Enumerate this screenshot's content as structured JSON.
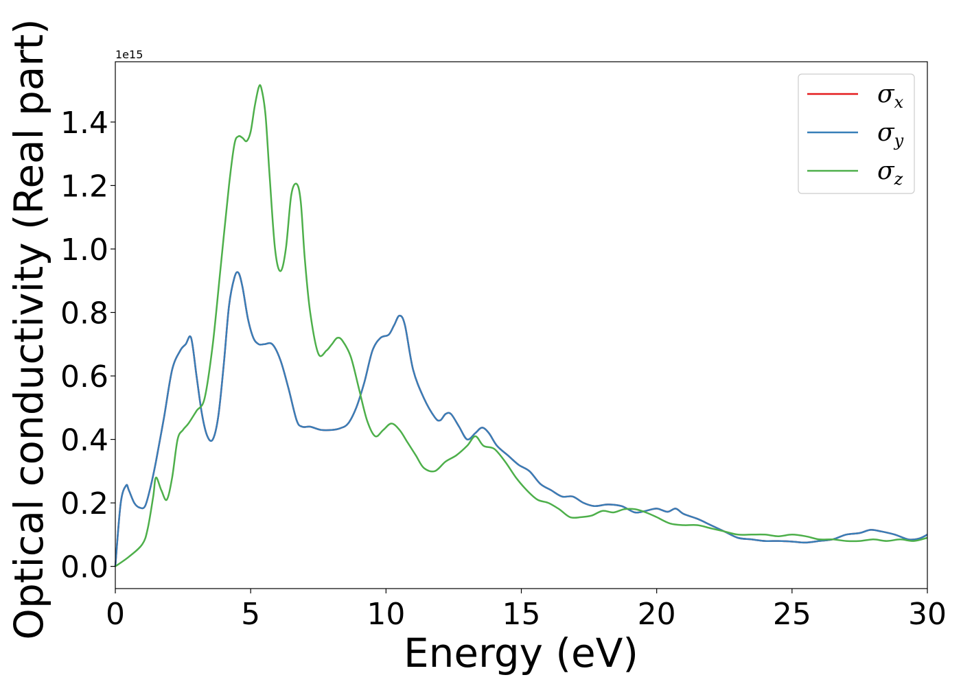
{
  "chart_data": {
    "type": "line",
    "xlabel": "Energy (eV)",
    "ylabel": "Optical conductivity (Real part)",
    "y_offset_label": "1e15",
    "xlim": [
      0,
      30
    ],
    "ylim": [
      -0.07,
      1.59
    ],
    "xticks": [
      "0",
      "5",
      "10",
      "15",
      "20",
      "25",
      "30"
    ],
    "yticks": [
      "0.0",
      "0.2",
      "0.4",
      "0.6",
      "0.8",
      "1.0",
      "1.2",
      "1.4"
    ],
    "grid": false,
    "legend_position": "top-right",
    "series": [
      {
        "name": "σx",
        "symbol": "σ",
        "sub": "x",
        "color": "#e41a1c",
        "x": [
          0,
          0.2,
          0.4,
          0.5,
          0.7,
          0.9,
          1.1,
          1.3,
          1.5,
          1.8,
          2.1,
          2.4,
          2.6,
          2.8,
          3.0,
          3.2,
          3.4,
          3.6,
          3.8,
          4.0,
          4.2,
          4.4,
          4.55,
          4.7,
          4.9,
          5.1,
          5.3,
          5.5,
          5.8,
          6.1,
          6.4,
          6.7,
          6.9,
          7.2,
          7.6,
          8.0,
          8.3,
          8.6,
          8.9,
          9.2,
          9.5,
          9.8,
          10.1,
          10.3,
          10.5,
          10.7,
          11.0,
          11.4,
          11.8,
          12.0,
          12.2,
          12.4,
          12.7,
          13.0,
          13.3,
          13.55,
          13.8,
          14.1,
          14.5,
          14.9,
          15.3,
          15.7,
          16.1,
          16.5,
          16.9,
          17.3,
          17.7,
          18.2,
          18.7,
          19.2,
          19.6,
          20.0,
          20.4,
          20.7,
          21.0,
          21.5,
          22.0,
          22.5,
          23.0,
          23.5,
          24.0,
          24.5,
          25.0,
          25.5,
          26.0,
          26.5,
          27.0,
          27.5,
          27.9,
          28.3,
          28.8,
          29.3,
          29.7,
          30.0
        ],
        "y": [
          0.0,
          0.2,
          0.255,
          0.24,
          0.2,
          0.185,
          0.19,
          0.25,
          0.33,
          0.47,
          0.62,
          0.68,
          0.7,
          0.72,
          0.6,
          0.48,
          0.41,
          0.4,
          0.47,
          0.63,
          0.82,
          0.91,
          0.925,
          0.88,
          0.78,
          0.72,
          0.7,
          0.7,
          0.7,
          0.65,
          0.56,
          0.46,
          0.44,
          0.44,
          0.43,
          0.43,
          0.435,
          0.45,
          0.5,
          0.58,
          0.68,
          0.72,
          0.73,
          0.76,
          0.79,
          0.76,
          0.62,
          0.53,
          0.47,
          0.46,
          0.48,
          0.48,
          0.44,
          0.4,
          0.42,
          0.437,
          0.42,
          0.38,
          0.35,
          0.32,
          0.3,
          0.26,
          0.24,
          0.22,
          0.22,
          0.2,
          0.19,
          0.195,
          0.19,
          0.17,
          0.175,
          0.182,
          0.172,
          0.182,
          0.165,
          0.15,
          0.13,
          0.11,
          0.09,
          0.085,
          0.08,
          0.08,
          0.078,
          0.075,
          0.08,
          0.085,
          0.1,
          0.105,
          0.115,
          0.11,
          0.1,
          0.085,
          0.088,
          0.1
        ]
      },
      {
        "name": "σy",
        "symbol": "σ",
        "sub": "y",
        "color": "#377eb8",
        "x": [
          0,
          0.2,
          0.4,
          0.5,
          0.7,
          0.9,
          1.1,
          1.3,
          1.5,
          1.8,
          2.1,
          2.4,
          2.6,
          2.8,
          3.0,
          3.2,
          3.4,
          3.6,
          3.8,
          4.0,
          4.2,
          4.4,
          4.55,
          4.7,
          4.9,
          5.1,
          5.3,
          5.5,
          5.8,
          6.1,
          6.4,
          6.7,
          6.9,
          7.2,
          7.6,
          8.0,
          8.3,
          8.6,
          8.9,
          9.2,
          9.5,
          9.8,
          10.1,
          10.3,
          10.5,
          10.7,
          11.0,
          11.4,
          11.8,
          12.0,
          12.2,
          12.4,
          12.7,
          13.0,
          13.3,
          13.55,
          13.8,
          14.1,
          14.5,
          14.9,
          15.3,
          15.7,
          16.1,
          16.5,
          16.9,
          17.3,
          17.7,
          18.2,
          18.7,
          19.2,
          19.6,
          20.0,
          20.4,
          20.7,
          21.0,
          21.5,
          22.0,
          22.5,
          23.0,
          23.5,
          24.0,
          24.5,
          25.0,
          25.5,
          26.0,
          26.5,
          27.0,
          27.5,
          27.9,
          28.3,
          28.8,
          29.3,
          29.7,
          30.0
        ],
        "y": [
          0.0,
          0.2,
          0.255,
          0.24,
          0.2,
          0.185,
          0.19,
          0.25,
          0.33,
          0.47,
          0.62,
          0.68,
          0.7,
          0.72,
          0.6,
          0.48,
          0.41,
          0.4,
          0.47,
          0.63,
          0.82,
          0.91,
          0.925,
          0.88,
          0.78,
          0.72,
          0.7,
          0.7,
          0.7,
          0.65,
          0.56,
          0.46,
          0.44,
          0.44,
          0.43,
          0.43,
          0.435,
          0.45,
          0.5,
          0.58,
          0.68,
          0.72,
          0.73,
          0.76,
          0.79,
          0.76,
          0.62,
          0.53,
          0.47,
          0.46,
          0.48,
          0.48,
          0.44,
          0.4,
          0.42,
          0.437,
          0.42,
          0.38,
          0.35,
          0.32,
          0.3,
          0.26,
          0.24,
          0.22,
          0.22,
          0.2,
          0.19,
          0.195,
          0.19,
          0.17,
          0.175,
          0.182,
          0.172,
          0.182,
          0.165,
          0.15,
          0.13,
          0.11,
          0.09,
          0.085,
          0.08,
          0.08,
          0.078,
          0.075,
          0.08,
          0.085,
          0.1,
          0.105,
          0.115,
          0.11,
          0.1,
          0.085,
          0.088,
          0.1
        ]
      },
      {
        "name": "σz",
        "symbol": "σ",
        "sub": "z",
        "color": "#4daf4a",
        "x": [
          0,
          0.5,
          1.0,
          1.2,
          1.4,
          1.5,
          1.7,
          1.9,
          2.1,
          2.3,
          2.5,
          2.7,
          3.0,
          3.3,
          3.6,
          3.9,
          4.2,
          4.4,
          4.55,
          4.7,
          4.85,
          5.0,
          5.15,
          5.3,
          5.4,
          5.55,
          5.7,
          5.9,
          6.1,
          6.3,
          6.5,
          6.7,
          6.85,
          7.0,
          7.2,
          7.5,
          7.8,
          8.0,
          8.2,
          8.4,
          8.7,
          9.0,
          9.3,
          9.6,
          9.9,
          10.2,
          10.5,
          10.8,
          11.1,
          11.4,
          11.8,
          12.2,
          12.6,
          13.0,
          13.3,
          13.6,
          14.0,
          14.4,
          14.8,
          15.2,
          15.6,
          16.0,
          16.4,
          16.8,
          17.2,
          17.6,
          18.0,
          18.4,
          18.8,
          19.2,
          19.6,
          20.0,
          20.5,
          21.0,
          21.5,
          22.0,
          22.5,
          23.0,
          23.5,
          24.0,
          24.5,
          25.0,
          25.5,
          26.0,
          26.5,
          27.0,
          27.5,
          28.0,
          28.5,
          29.0,
          29.5,
          30.0
        ],
        "y": [
          0.0,
          0.03,
          0.07,
          0.12,
          0.22,
          0.28,
          0.24,
          0.21,
          0.28,
          0.4,
          0.43,
          0.45,
          0.49,
          0.53,
          0.7,
          0.95,
          1.2,
          1.33,
          1.355,
          1.35,
          1.34,
          1.37,
          1.45,
          1.51,
          1.505,
          1.42,
          1.23,
          1.0,
          0.93,
          1.0,
          1.17,
          1.205,
          1.15,
          0.97,
          0.8,
          0.67,
          0.68,
          0.7,
          0.72,
          0.71,
          0.66,
          0.56,
          0.46,
          0.41,
          0.43,
          0.45,
          0.43,
          0.39,
          0.35,
          0.31,
          0.3,
          0.33,
          0.35,
          0.38,
          0.41,
          0.38,
          0.37,
          0.33,
          0.28,
          0.24,
          0.21,
          0.2,
          0.18,
          0.155,
          0.155,
          0.16,
          0.175,
          0.17,
          0.18,
          0.18,
          0.17,
          0.155,
          0.135,
          0.13,
          0.13,
          0.12,
          0.11,
          0.1,
          0.1,
          0.1,
          0.095,
          0.1,
          0.095,
          0.085,
          0.085,
          0.08,
          0.08,
          0.085,
          0.08,
          0.085,
          0.08,
          0.09
        ]
      }
    ]
  }
}
